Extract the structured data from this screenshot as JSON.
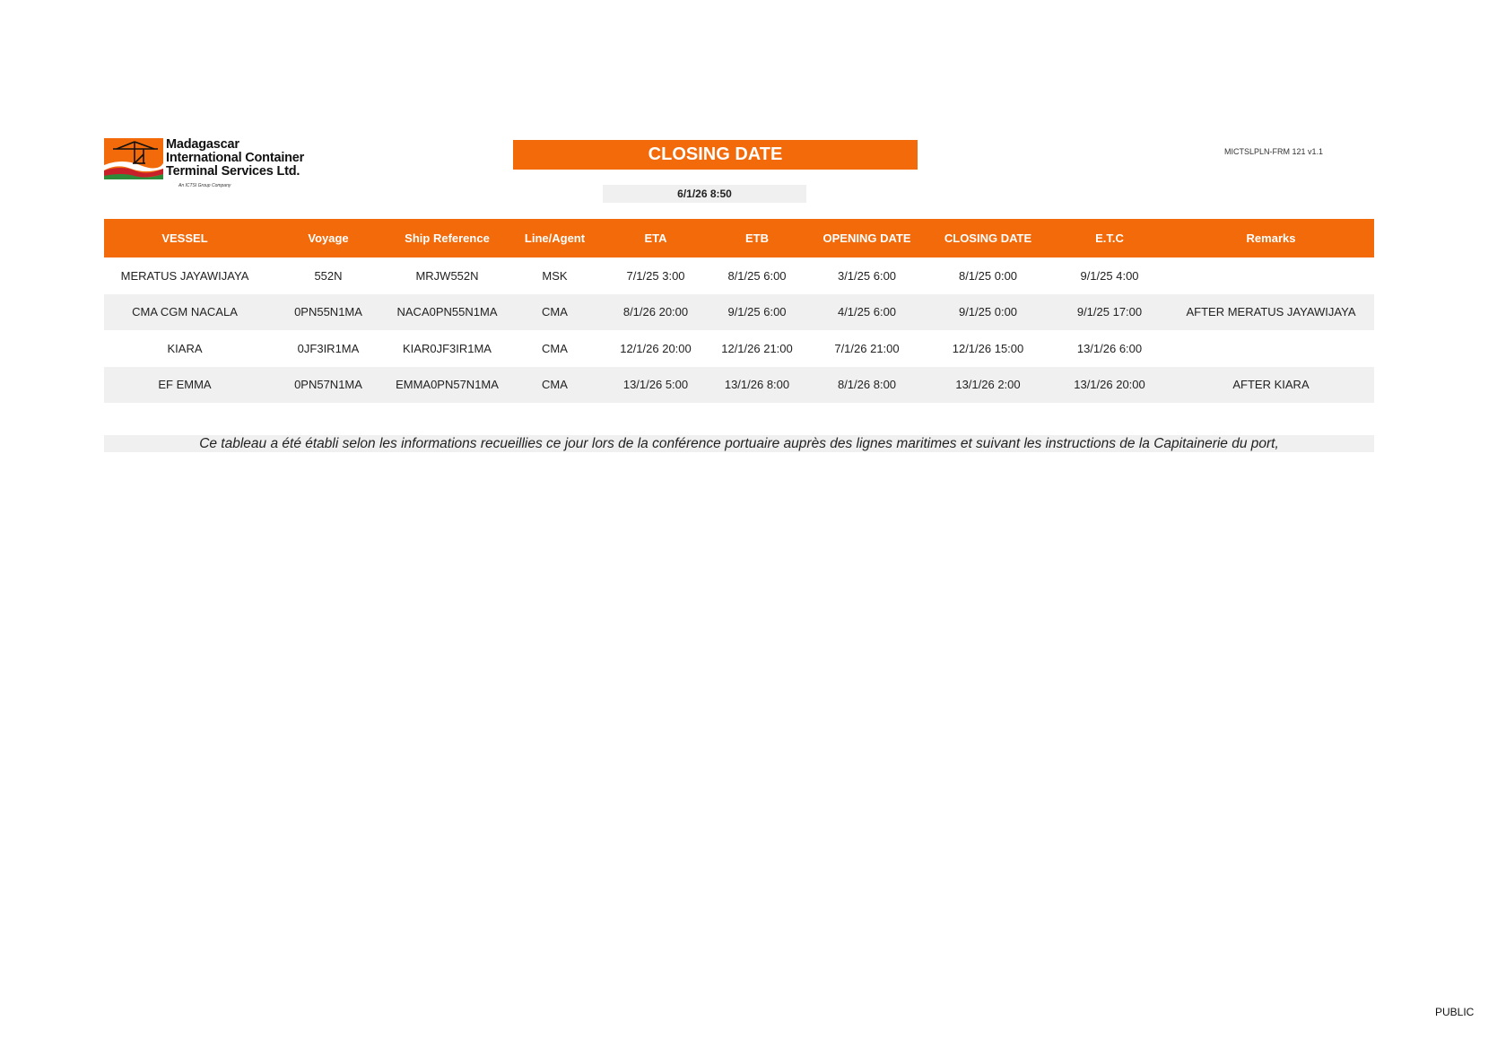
{
  "company": {
    "name_lines": [
      "Madagascar",
      "International Container",
      "Terminal Services Ltd."
    ],
    "tagline": "An ICTSI Group Company"
  },
  "header": {
    "title": "CLOSING DATE",
    "report_datetime": "6/1/26 8:50",
    "form_code": "MICTSLPLN-FRM 121 v1.1"
  },
  "colors": {
    "accent": "#f26a0a",
    "row_alt": "#f0f0f0"
  },
  "table": {
    "columns": [
      "VESSEL",
      "Voyage",
      "Ship Reference",
      "Line/Agent",
      "ETA",
      "ETB",
      "OPENING DATE",
      "CLOSING DATE",
      "E.T.C",
      "Remarks"
    ],
    "rows": [
      [
        "MERATUS JAYAWIJAYA",
        "552N",
        "MRJW552N",
        "MSK",
        "7/1/25 3:00",
        "8/1/25 6:00",
        "3/1/25 6:00",
        "8/1/25 0:00",
        "9/1/25 4:00",
        ""
      ],
      [
        "CMA CGM NACALA",
        "0PN55N1MA",
        "NACA0PN55N1MA",
        "CMA",
        "8/1/26 20:00",
        "9/1/25 6:00",
        "4/1/25 6:00",
        "9/1/25 0:00",
        "9/1/25 17:00",
        "AFTER MERATUS JAYAWIJAYA"
      ],
      [
        "KIARA",
        "0JF3IR1MA",
        "KIAR0JF3IR1MA",
        "CMA",
        "12/1/26 20:00",
        "12/1/26 21:00",
        "7/1/26 21:00",
        "12/1/26 15:00",
        "13/1/26 6:00",
        ""
      ],
      [
        "EF EMMA",
        "0PN57N1MA",
        "EMMA0PN57N1MA",
        "CMA",
        "13/1/26 5:00",
        "13/1/26 8:00",
        "8/1/26 8:00",
        "13/1/26 2:00",
        "13/1/26 20:00",
        "AFTER KIARA"
      ]
    ]
  },
  "footnote": "Ce tableau a été établi selon les informations recueillies ce jour lors de la conférence portuaire auprès des lignes maritimes et suivant les instructions de la Capitainerie du port,",
  "classification": "PUBLIC"
}
